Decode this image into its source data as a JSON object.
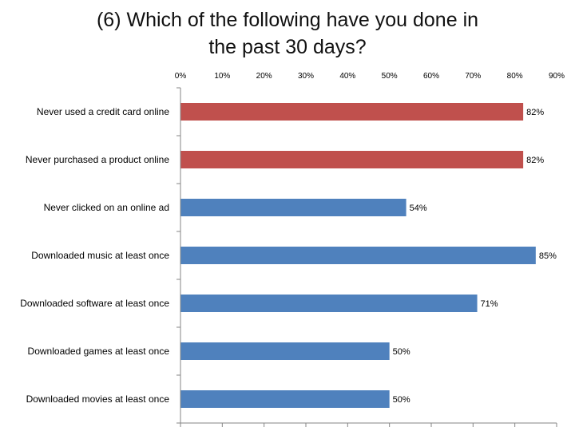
{
  "chart_data": {
    "type": "bar",
    "orientation": "horizontal",
    "title_lines": [
      "(6) Which of the following have you done in",
      "the past 30 days?"
    ],
    "xlabel": "",
    "ylabel": "",
    "xlim": [
      0,
      90
    ],
    "tick_step": 10,
    "tick_labels": [
      "0%",
      "10%",
      "20%",
      "30%",
      "40%",
      "50%",
      "60%",
      "70%",
      "80%",
      "90%"
    ],
    "categories": [
      "Never used a credit card online",
      "Never purchased a product online",
      "Never clicked on an online ad",
      "Downloaded music at least once",
      "Downloaded software at least once",
      "Downloaded games at least once",
      "Downloaded movies at least once"
    ],
    "values": [
      82,
      82,
      54,
      85,
      71,
      50,
      50
    ],
    "value_labels": [
      "82%",
      "82%",
      "54%",
      "85%",
      "71%",
      "50%",
      "50%"
    ],
    "bar_colors": [
      "#C0504D",
      "#C0504D",
      "#4F81BD",
      "#4F81BD",
      "#4F81BD",
      "#4F81BD",
      "#4F81BD"
    ],
    "grid": false,
    "legend": "none"
  }
}
